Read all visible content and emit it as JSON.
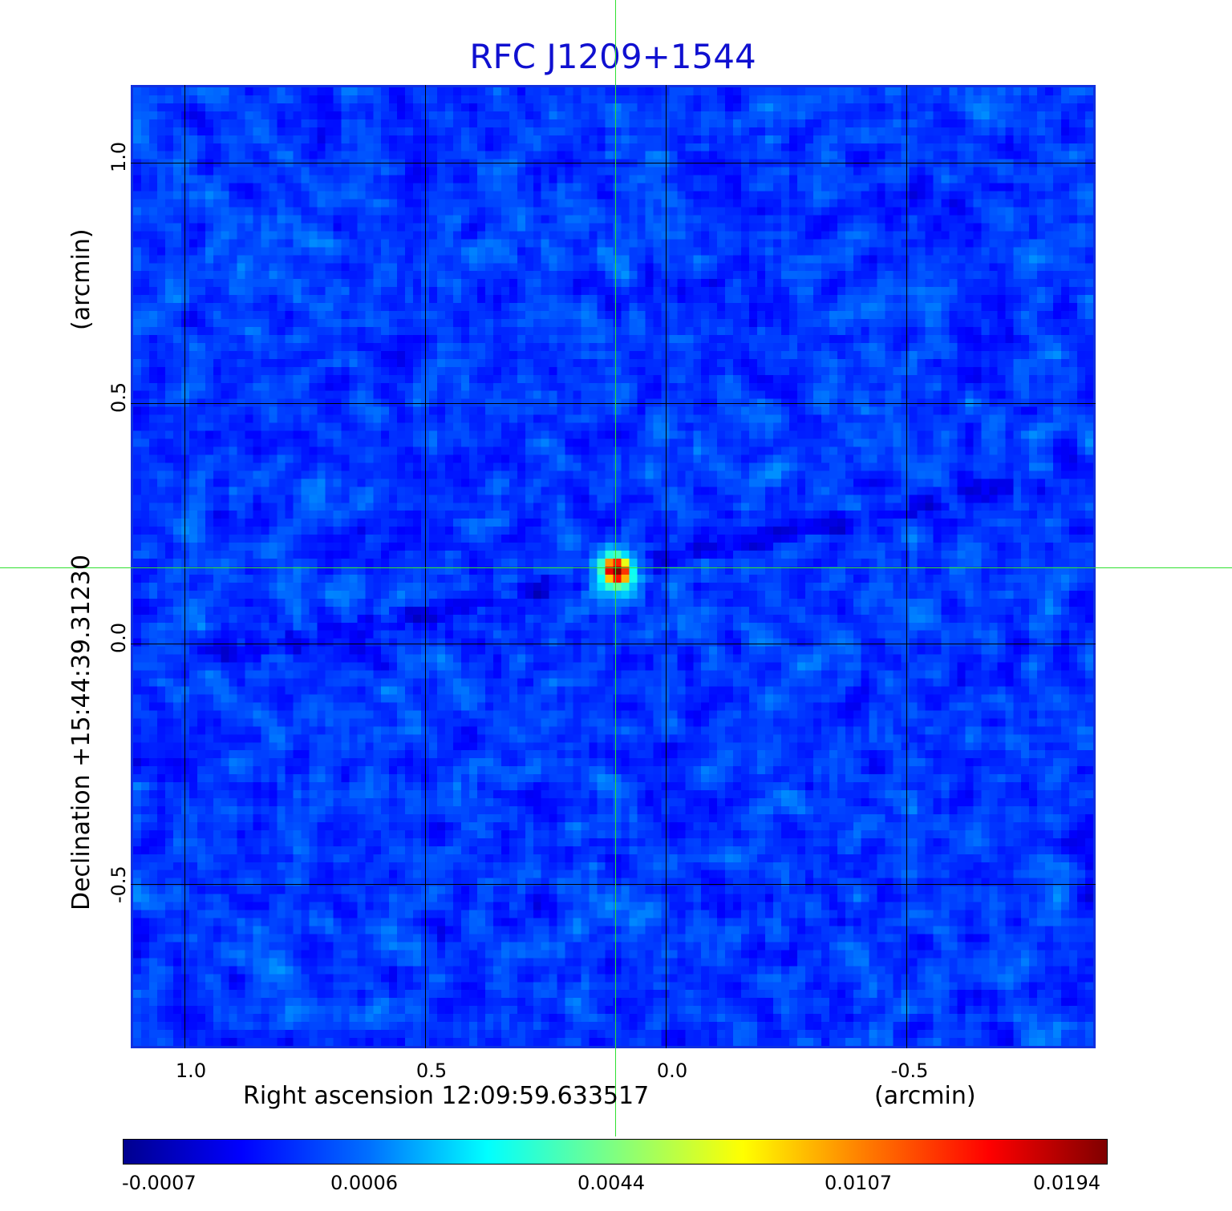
{
  "title": "RFC J1209+1544",
  "x_axis": {
    "tick_labels": [
      "1.0",
      "0.5",
      "0.0",
      "-0.5"
    ],
    "label": "Right ascension  12:09:59.633517",
    "unit": "(arcmin)"
  },
  "y_axis": {
    "tick_labels": [
      "1.0",
      "0.5",
      "0.0",
      "-0.5"
    ],
    "label": "Declination  +15:44:39.31230",
    "unit": "(arcmin)"
  },
  "colorbar": {
    "tick_labels": [
      "-0.0007",
      "0.0006",
      "0.0044",
      "0.0107",
      "0.0194"
    ],
    "colormap": "jet"
  },
  "colors": {
    "title": "#1010d0",
    "frame": "#1030e0",
    "crosshair": "#30e030",
    "grid": "#000000"
  }
}
